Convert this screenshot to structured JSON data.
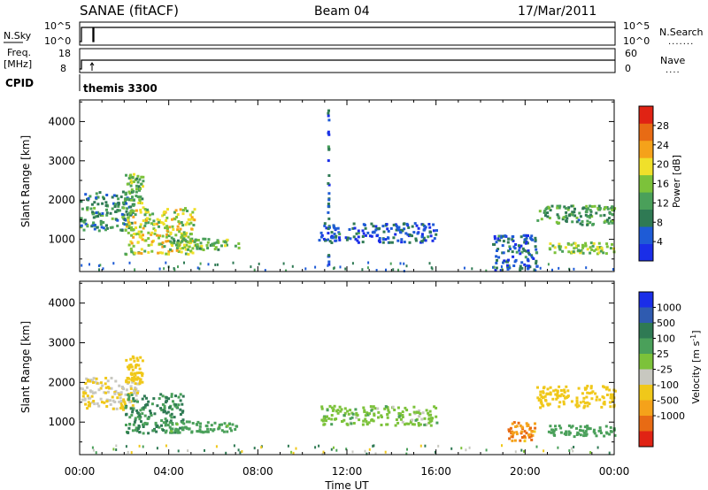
{
  "header": {
    "title": "SANAE (fitACF)",
    "beam": "Beam 04",
    "date": "17/Mar/2011"
  },
  "aux_panels": {
    "nsky": {
      "label": "N.Sky",
      "ticks": [
        "10^5",
        "10^0"
      ]
    },
    "nsearch": {
      "label": "N.Search",
      "ticks": [
        "10^5",
        "10^0"
      ]
    },
    "freq": {
      "label_line1": "Freq.",
      "label_line2": "[MHz]",
      "ticks": [
        "18",
        "8"
      ]
    },
    "nave": {
      "label": "Nave",
      "ticks": [
        "60",
        "0"
      ]
    },
    "cpid": {
      "label": "CPID",
      "value": "themis 3300"
    }
  },
  "colors": {
    "power_scale": [
      "#1a2ee8",
      "#1e5bd6",
      "#2f7a54",
      "#4aa05a",
      "#7cc23a",
      "#f0e02a",
      "#f5a21a",
      "#e86b14",
      "#e02314"
    ],
    "velocity_scale": [
      "#1a2ee8",
      "#2f5bb0",
      "#2f7a54",
      "#4aa05a",
      "#7cc23a",
      "#c8c8c0",
      "#f0c81a",
      "#f5a21a",
      "#e86b14",
      "#e02314"
    ]
  },
  "chart_data": [
    {
      "type": "heatmap",
      "panel": "power",
      "ylabel": "Slant Range [km]",
      "xlabel": "Time UT",
      "x_ticks": [
        "00:00",
        "04:00",
        "08:00",
        "12:00",
        "16:00",
        "20:00",
        "00:00"
      ],
      "xlim_hours": [
        0,
        24
      ],
      "y_ticks": [
        1000,
        2000,
        3000,
        4000
      ],
      "ylim": [
        180,
        4550
      ],
      "colorbar": {
        "label": "Power [dB]",
        "ticks": [
          "4",
          "8",
          "12",
          "16",
          "20",
          "24",
          "28"
        ],
        "range": [
          0,
          32
        ]
      },
      "features": [
        {
          "t0": 0.0,
          "t1": 2.4,
          "r0": 1200,
          "r1": 2200,
          "value": 10
        },
        {
          "t0": 2.0,
          "t1": 2.8,
          "r0": 1900,
          "r1": 2650,
          "value": 14
        },
        {
          "t0": 2.0,
          "t1": 5.2,
          "r0": 600,
          "r1": 1800,
          "value": 18
        },
        {
          "t0": 4.0,
          "t1": 7.1,
          "r0": 720,
          "r1": 1000,
          "value": 14
        },
        {
          "t0": 10.7,
          "t1": 16.0,
          "r0": 900,
          "r1": 1400,
          "value": 6
        },
        {
          "t0": 11.1,
          "t1": 11.1,
          "r0": 200,
          "r1": 4300,
          "value": 6
        },
        {
          "t0": 18.5,
          "t1": 20.5,
          "r0": 200,
          "r1": 1100,
          "value": 6
        },
        {
          "t0": 20.5,
          "t1": 24.0,
          "r0": 1350,
          "r1": 1850,
          "value": 12
        },
        {
          "t0": 21.0,
          "t1": 24.0,
          "r0": 620,
          "r1": 900,
          "value": 16
        }
      ]
    },
    {
      "type": "heatmap",
      "panel": "velocity",
      "ylabel": "Slant Range [km]",
      "xlabel": "Time UT",
      "x_ticks": [
        "00:00",
        "04:00",
        "08:00",
        "12:00",
        "16:00",
        "20:00",
        "00:00"
      ],
      "xlim_hours": [
        0,
        24
      ],
      "y_ticks": [
        1000,
        2000,
        3000,
        4000
      ],
      "ylim": [
        180,
        4550
      ],
      "colorbar": {
        "label": "Velocity [m s^-1]",
        "ticks": [
          "1000",
          "500",
          "100",
          "25",
          "-25",
          "-100",
          "-500",
          "-1000"
        ]
      },
      "features": [
        {
          "t0": 0.0,
          "t1": 2.6,
          "r0": 1300,
          "r1": 2100,
          "value": -100
        },
        {
          "t0": 2.0,
          "t1": 2.8,
          "r0": 1950,
          "r1": 2650,
          "value": -300
        },
        {
          "t0": 2.0,
          "t1": 4.6,
          "r0": 700,
          "r1": 1700,
          "value": 100
        },
        {
          "t0": 4.0,
          "t1": 7.1,
          "r0": 720,
          "r1": 1000,
          "value": 50
        },
        {
          "t0": 10.8,
          "t1": 16.0,
          "r0": 900,
          "r1": 1400,
          "value": 0
        },
        {
          "t0": 19.2,
          "t1": 20.4,
          "r0": 500,
          "r1": 1000,
          "value": -900
        },
        {
          "t0": 20.5,
          "t1": 24.0,
          "r0": 1350,
          "r1": 1900,
          "value": -200
        },
        {
          "t0": 21.0,
          "t1": 24.0,
          "r0": 620,
          "r1": 900,
          "value": 60
        }
      ]
    }
  ]
}
